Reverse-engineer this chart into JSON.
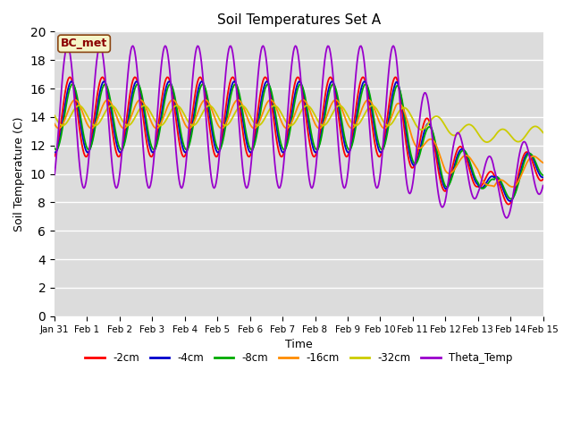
{
  "title": "Soil Temperatures Set A",
  "xlabel": "Time",
  "ylabel": "Soil Temperature (C)",
  "ylim": [
    0,
    20
  ],
  "yticks": [
    0,
    2,
    4,
    6,
    8,
    10,
    12,
    14,
    16,
    18,
    20
  ],
  "bg_color_top": "#d8d8d8",
  "bg_color_bottom": "#c8c8c8",
  "annotation_text": "BC_met",
  "annotation_color": "#8B0000",
  "annotation_bg": "#f5f5c8",
  "series_colors": {
    "-2cm": "#ff0000",
    "-4cm": "#0000cc",
    "-8cm": "#00aa00",
    "-16cm": "#ff8c00",
    "-32cm": "#cccc00",
    "Theta_Temp": "#9900cc"
  },
  "x_tick_labels": [
    "Jan 31",
    "Feb 1",
    "Feb 2",
    "Feb 3",
    "Feb 4",
    "Feb 5",
    "Feb 6",
    "Feb 7",
    "Feb 8",
    "Feb 9",
    "Feb 10",
    "Feb 11",
    "Feb 12",
    "Feb 13",
    "Feb 14",
    "Feb 15"
  ],
  "num_points": 500
}
